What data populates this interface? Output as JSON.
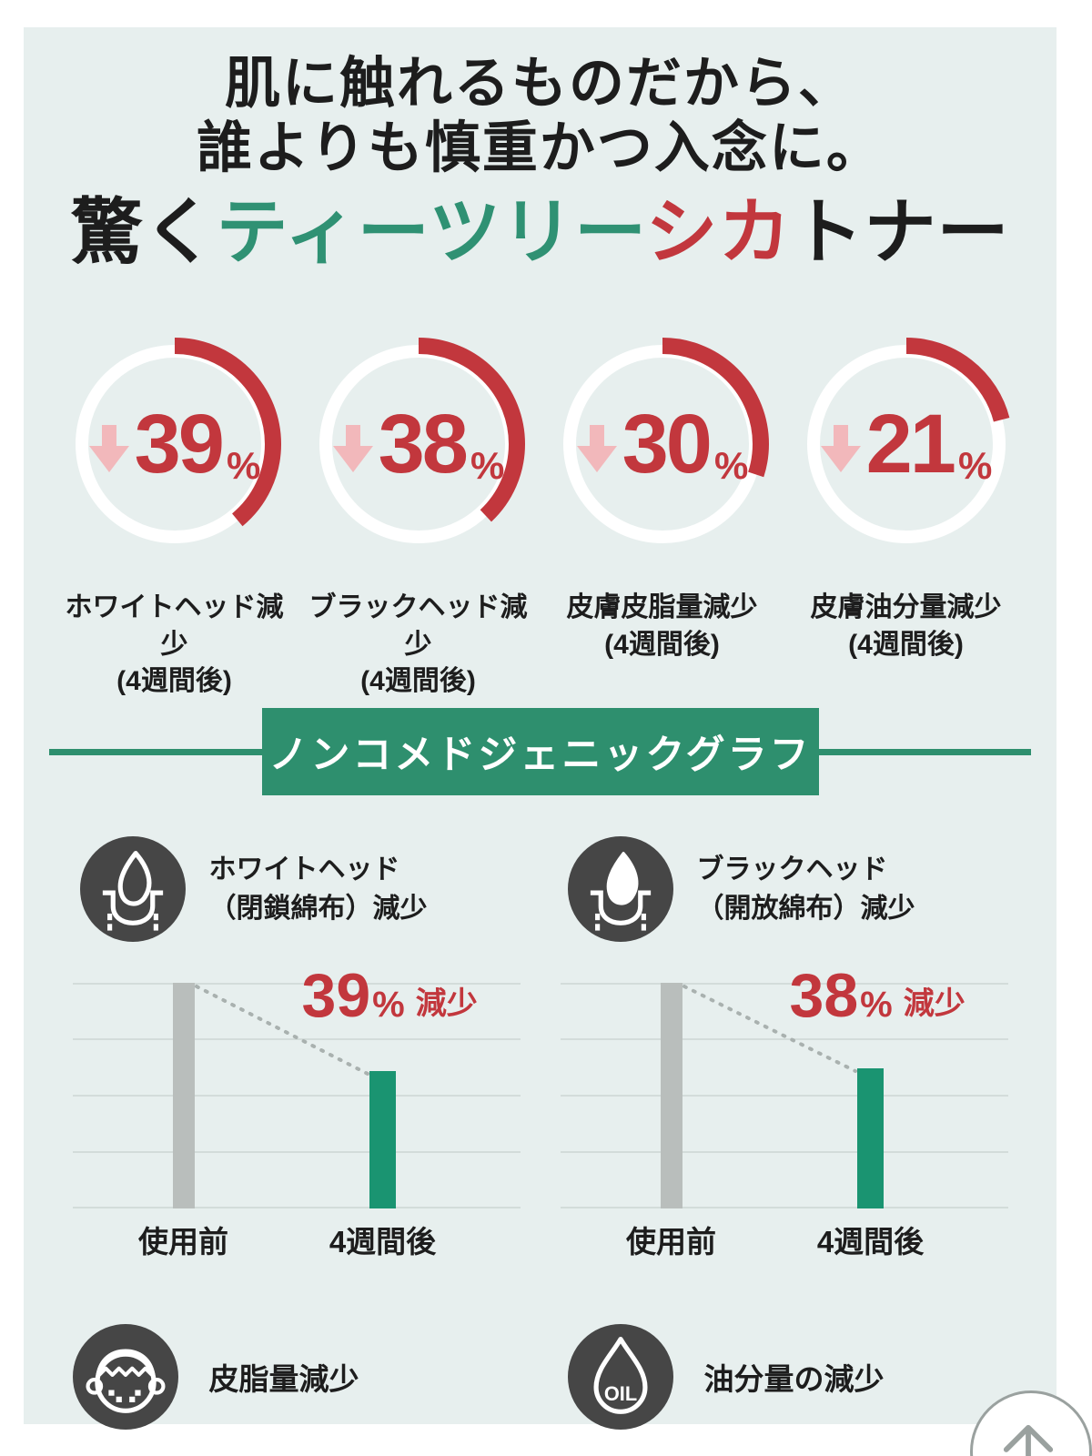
{
  "colors": {
    "card_bg": "#e7efee",
    "text": "#1d1d1d",
    "red": "#c2373d",
    "pink": "#f2b8bb",
    "green": "#2e8f6e",
    "title_green": "#2f9173",
    "bar_gray": "#b9bebc",
    "bar_green": "#1a9471",
    "icon_dark": "#464646",
    "grid": "#d3dcda",
    "dotted": "#a9b1af",
    "scroll_gray": "#9aa19f"
  },
  "heading": {
    "line1": "肌に触れるものだから、",
    "line2": "誰よりも慎重かつ入念に。"
  },
  "title": {
    "segments": [
      {
        "text": "驚く",
        "color": "#1d1d1d"
      },
      {
        "text": "ティーツリー",
        "color": "#2f9173"
      },
      {
        "text": "シカ",
        "color": "#c2373d"
      },
      {
        "text": "トナー",
        "color": "#1d1d1d"
      }
    ]
  },
  "stats": [
    {
      "percent": 39,
      "label": "ホワイトヘッド減少",
      "sublabel": "(4週間後)"
    },
    {
      "percent": 38,
      "label": "ブラックヘッド減少",
      "sublabel": "(4週間後)"
    },
    {
      "percent": 30,
      "label": "皮膚皮脂量減少",
      "sublabel": "(4週間後)"
    },
    {
      "percent": 21,
      "label": "皮膚油分量減少",
      "sublabel": "(4週間後)"
    }
  ],
  "banner": {
    "label": "ノンコメドジェニックグラフ"
  },
  "charts": [
    {
      "icon": "follicle-outline-icon",
      "title_lines": [
        "ホワイトヘッド",
        "（閉鎖綿布）減少"
      ],
      "percent": 39,
      "percent_sign": "%",
      "decrease_label": "減少",
      "categories": [
        "使用前",
        "4週間後"
      ],
      "values": [
        100,
        61
      ]
    },
    {
      "icon": "follicle-filled-icon",
      "title_lines": [
        "ブラックヘッド",
        "（開放綿布）減少"
      ],
      "percent": 38,
      "percent_sign": "%",
      "decrease_label": "減少",
      "categories": [
        "使用前",
        "4週間後"
      ],
      "values": [
        100,
        62
      ]
    }
  ],
  "footer_items": [
    {
      "icon": "face-sebum-icon",
      "label": "皮脂量減少"
    },
    {
      "icon": "oil-drop-icon",
      "label": "油分量の減少"
    }
  ],
  "chart_data": [
    {
      "type": "pie",
      "variant": "ring-progress",
      "label": "ホワイトヘッド減少 (4週間後)",
      "value": 39,
      "unit": "%",
      "direction": "decrease",
      "color": "#c2373d"
    },
    {
      "type": "pie",
      "variant": "ring-progress",
      "label": "ブラックヘッド減少 (4週間後)",
      "value": 38,
      "unit": "%",
      "direction": "decrease",
      "color": "#c2373d"
    },
    {
      "type": "pie",
      "variant": "ring-progress",
      "label": "皮膚皮脂量減少 (4週間後)",
      "value": 30,
      "unit": "%",
      "direction": "decrease",
      "color": "#c2373d"
    },
    {
      "type": "pie",
      "variant": "ring-progress",
      "label": "皮膚油分量減少 (4週間後)",
      "value": 21,
      "unit": "%",
      "direction": "decrease",
      "color": "#c2373d"
    },
    {
      "type": "bar",
      "title": "ホワイトヘッド（閉鎖綿布）減少",
      "categories": [
        "使用前",
        "4週間後"
      ],
      "values": [
        100,
        61
      ],
      "annotation": "39% 減少",
      "grid": true,
      "ylim": [
        0,
        100
      ],
      "bar_colors": [
        "#b9bebc",
        "#1a9471"
      ]
    },
    {
      "type": "bar",
      "title": "ブラックヘッド（開放綿布）減少",
      "categories": [
        "使用前",
        "4週間後"
      ],
      "values": [
        100,
        62
      ],
      "annotation": "38% 減少",
      "grid": true,
      "ylim": [
        0,
        100
      ],
      "bar_colors": [
        "#b9bebc",
        "#1a9471"
      ]
    }
  ]
}
